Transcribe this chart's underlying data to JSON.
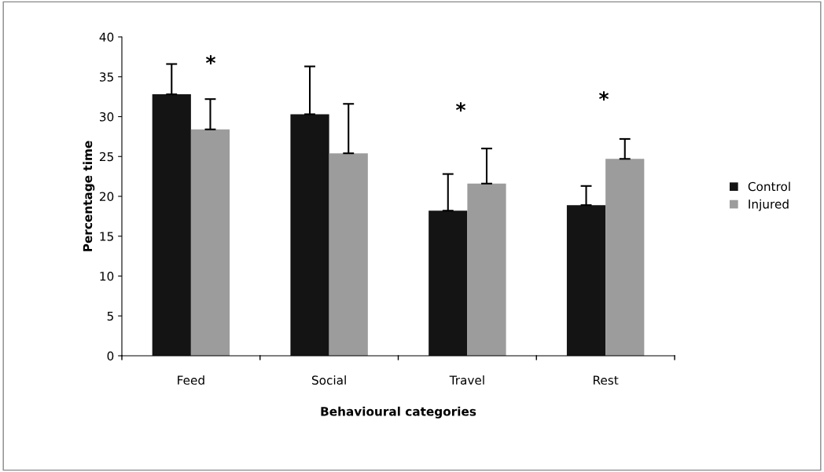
{
  "chart_data": {
    "type": "bar",
    "xlabel": "Behavioural categories",
    "ylabel": "Percentage time",
    "categories": [
      "Feed",
      "Social",
      "Travel",
      "Rest"
    ],
    "series": [
      {
        "name": "Control",
        "color": "#141414",
        "values": [
          32.8,
          30.3,
          18.2,
          18.9
        ],
        "errors": [
          [
            32.8,
            36.6
          ],
          [
            30.3,
            36.3
          ],
          [
            18.2,
            22.8
          ],
          [
            18.9,
            21.3
          ]
        ]
      },
      {
        "name": "Injured",
        "color": "#9c9c9c",
        "values": [
          28.4,
          25.4,
          21.6,
          24.7
        ],
        "errors": [
          [
            28.4,
            32.2
          ],
          [
            25.4,
            31.6
          ],
          [
            21.6,
            26.0
          ],
          [
            24.7,
            27.2
          ]
        ]
      }
    ],
    "ylim": [
      0,
      40
    ],
    "yticks": [
      0,
      5,
      10,
      15,
      20,
      25,
      30,
      35,
      40
    ],
    "grid": false,
    "legend": "right",
    "annotations": [
      "*",
      "*",
      "*"
    ]
  }
}
